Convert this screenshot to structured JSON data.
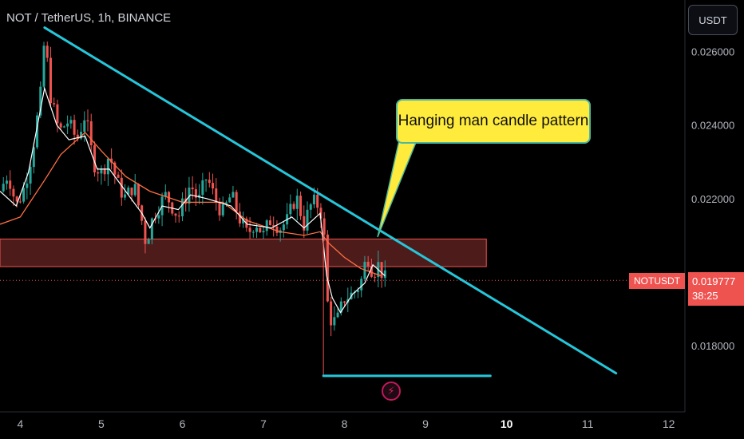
{
  "header": {
    "symbol_title": "NOT / TetherUS, 1h, BINANCE"
  },
  "currency_button": {
    "label": "USDT"
  },
  "annotation": {
    "text": "Hanging man candle pattern"
  },
  "price_tag": {
    "symbol": "NOTUSDT",
    "price": "0.019777",
    "countdown": "38:25"
  },
  "flash_icon": {
    "name": "lightning-icon",
    "glyph": "⚡"
  },
  "colors": {
    "background": "#000000",
    "up": "#26a69a",
    "down": "#ef5350",
    "trendline": "#26c6da",
    "ma_slow": "#ff7043",
    "ma_fast": "#ffffff",
    "callout_bg": "#ffeb3b",
    "zone": "#ef5350"
  },
  "chart_data": {
    "type": "candlestick",
    "y_ticks": [
      "0.026000",
      "0.024000",
      "0.022000",
      "0.018000"
    ],
    "x_ticks": [
      "4",
      "5",
      "6",
      "7",
      "8",
      "9",
      "10",
      "11",
      "12"
    ],
    "ylim": [
      0.0162,
      0.0274
    ],
    "xlim": [
      3.75,
      12.2
    ],
    "last_price": 0.019777,
    "series": [
      {
        "name": "ma_slow",
        "values": [
          [
            3.75,
            0.0213
          ],
          [
            4.0,
            0.0215
          ],
          [
            4.3,
            0.0225
          ],
          [
            4.5,
            0.0232
          ],
          [
            4.8,
            0.0238
          ],
          [
            5.0,
            0.0233
          ],
          [
            5.3,
            0.0226
          ],
          [
            5.6,
            0.0222
          ],
          [
            6.0,
            0.0219
          ],
          [
            6.5,
            0.0219
          ],
          [
            6.8,
            0.0214
          ],
          [
            7.2,
            0.0211
          ],
          [
            7.5,
            0.021
          ],
          [
            7.7,
            0.0211
          ],
          [
            7.8,
            0.0208
          ],
          [
            8.0,
            0.0204
          ],
          [
            8.2,
            0.0201
          ],
          [
            8.45,
            0.0199
          ]
        ]
      },
      {
        "name": "ma_fast",
        "values": [
          [
            3.75,
            0.0222
          ],
          [
            3.95,
            0.0218
          ],
          [
            4.1,
            0.0227
          ],
          [
            4.3,
            0.025
          ],
          [
            4.45,
            0.024
          ],
          [
            4.6,
            0.0236
          ],
          [
            4.8,
            0.0237
          ],
          [
            4.95,
            0.0228
          ],
          [
            5.1,
            0.0228
          ],
          [
            5.3,
            0.0222
          ],
          [
            5.5,
            0.0216
          ],
          [
            5.6,
            0.0212
          ],
          [
            5.75,
            0.0218
          ],
          [
            5.95,
            0.0217
          ],
          [
            6.1,
            0.0221
          ],
          [
            6.3,
            0.022
          ],
          [
            6.6,
            0.0218
          ],
          [
            6.8,
            0.0213
          ],
          [
            7.1,
            0.0212
          ],
          [
            7.35,
            0.0215
          ],
          [
            7.5,
            0.0212
          ],
          [
            7.7,
            0.0216
          ],
          [
            7.78,
            0.0199
          ],
          [
            7.85,
            0.0193
          ],
          [
            7.95,
            0.0189
          ],
          [
            8.1,
            0.0194
          ],
          [
            8.25,
            0.0197
          ],
          [
            8.35,
            0.0202
          ],
          [
            8.45,
            0.02
          ],
          [
            8.5,
            0.0199
          ]
        ]
      }
    ],
    "candle_path": [
      [
        3.75,
        0.0222
      ],
      [
        3.85,
        0.0227
      ],
      [
        3.95,
        0.0218
      ],
      [
        4.05,
        0.0223
      ],
      [
        4.15,
        0.0233
      ],
      [
        4.25,
        0.0248
      ],
      [
        4.3,
        0.0264
      ],
      [
        4.38,
        0.0247
      ],
      [
        4.48,
        0.0238
      ],
      [
        4.58,
        0.0241
      ],
      [
        4.7,
        0.0236
      ],
      [
        4.8,
        0.0243
      ],
      [
        4.9,
        0.023
      ],
      [
        5.0,
        0.0227
      ],
      [
        5.1,
        0.0232
      ],
      [
        5.2,
        0.0224
      ],
      [
        5.3,
        0.022
      ],
      [
        5.4,
        0.0224
      ],
      [
        5.5,
        0.0214
      ],
      [
        5.55,
        0.0208
      ],
      [
        5.65,
        0.0216
      ],
      [
        5.8,
        0.0221
      ],
      [
        5.95,
        0.0215
      ],
      [
        6.1,
        0.0224
      ],
      [
        6.2,
        0.0219
      ],
      [
        6.3,
        0.0226
      ],
      [
        6.4,
        0.022
      ],
      [
        6.5,
        0.0216
      ],
      [
        6.6,
        0.0221
      ],
      [
        6.7,
        0.0215
      ],
      [
        6.8,
        0.021
      ],
      [
        6.9,
        0.0214
      ],
      [
        7.0,
        0.021
      ],
      [
        7.1,
        0.0215
      ],
      [
        7.2,
        0.0212
      ],
      [
        7.3,
        0.0214
      ],
      [
        7.4,
        0.0221
      ],
      [
        7.5,
        0.0213
      ],
      [
        7.6,
        0.0219
      ],
      [
        7.7,
        0.0218
      ],
      [
        7.75,
        0.0209
      ],
      [
        7.8,
        0.0188
      ],
      [
        7.9,
        0.0186
      ],
      [
        8.0,
        0.0193
      ],
      [
        8.1,
        0.0194
      ],
      [
        8.2,
        0.0197
      ],
      [
        8.28,
        0.0205
      ],
      [
        8.35,
        0.02
      ],
      [
        8.42,
        0.0202
      ],
      [
        8.5,
        0.0198
      ]
    ],
    "lines": [
      {
        "from": [
          4.3,
          0.02665
        ],
        "to": [
          11.35,
          0.01725
        ]
      },
      {
        "from": [
          7.74,
          0.01718
        ],
        "to": [
          9.8,
          0.01718
        ]
      }
    ],
    "zone": {
      "x0": 3.75,
      "x1": 9.75,
      "y0": 0.02015,
      "y1": 0.0209
    }
  }
}
